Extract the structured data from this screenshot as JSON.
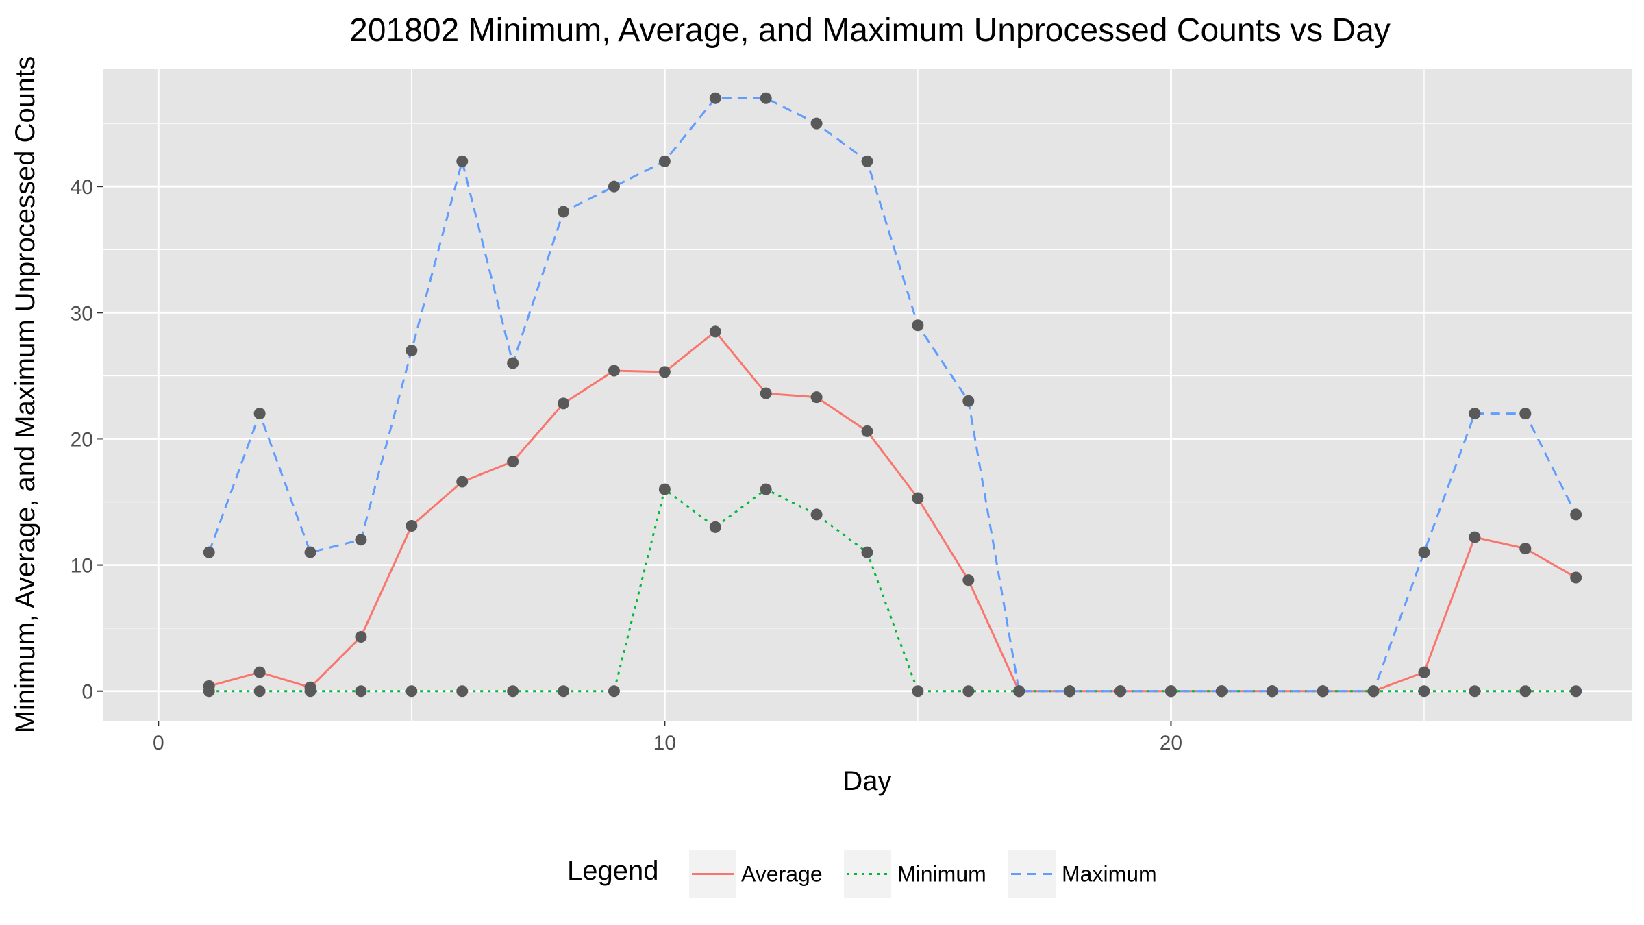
{
  "chart_data": {
    "type": "line",
    "title": "201802 Minimum, Average, and Maximum Unprocessed Counts vs Day",
    "xlabel": "Day",
    "ylabel": "Minimum, Average, and Maximum Unprocessed Counts",
    "xlim": [
      -1.1,
      29.1
    ],
    "ylim": [
      -2.35,
      49.35
    ],
    "x_ticks": [
      0,
      10,
      20
    ],
    "y_ticks": [
      0,
      10,
      20,
      30,
      40
    ],
    "grid": true,
    "legend_position": "bottom",
    "legend_title": "Legend",
    "x": [
      1,
      2,
      3,
      4,
      5,
      6,
      7,
      8,
      9,
      10,
      11,
      12,
      13,
      14,
      15,
      16,
      17,
      18,
      19,
      20,
      21,
      22,
      23,
      24,
      25,
      26,
      27,
      28
    ],
    "series": [
      {
        "name": "Average",
        "color": "#F8766D",
        "dash": "solid",
        "values": [
          0.4,
          1.5,
          0.3,
          4.3,
          13.1,
          16.6,
          18.2,
          22.8,
          25.4,
          25.3,
          28.5,
          23.6,
          23.3,
          20.6,
          15.3,
          8.8,
          0,
          0,
          0,
          0,
          0,
          0,
          0,
          0,
          1.5,
          12.2,
          11.3,
          9.0
        ]
      },
      {
        "name": "Minimum",
        "color": "#00BA38",
        "dash": "dotted",
        "values": [
          0,
          0,
          0,
          0,
          0,
          0,
          0,
          0,
          0,
          16,
          13,
          16,
          14,
          11,
          0,
          0,
          0,
          0,
          0,
          0,
          0,
          0,
          0,
          0,
          0,
          0,
          0,
          0
        ]
      },
      {
        "name": "Maximum",
        "color": "#619CFF",
        "dash": "dashed",
        "values": [
          11,
          22,
          11,
          12,
          27,
          42,
          26,
          38,
          40,
          42,
          47,
          47,
          45,
          42,
          29,
          23,
          0,
          0,
          0,
          0,
          0,
          0,
          0,
          0,
          11,
          22,
          22,
          14
        ]
      }
    ],
    "colors": {
      "panel": "#E5E5E5",
      "grid": "#FFFFFF",
      "point": "#595959",
      "legend_key": "#F2F2F2"
    }
  }
}
